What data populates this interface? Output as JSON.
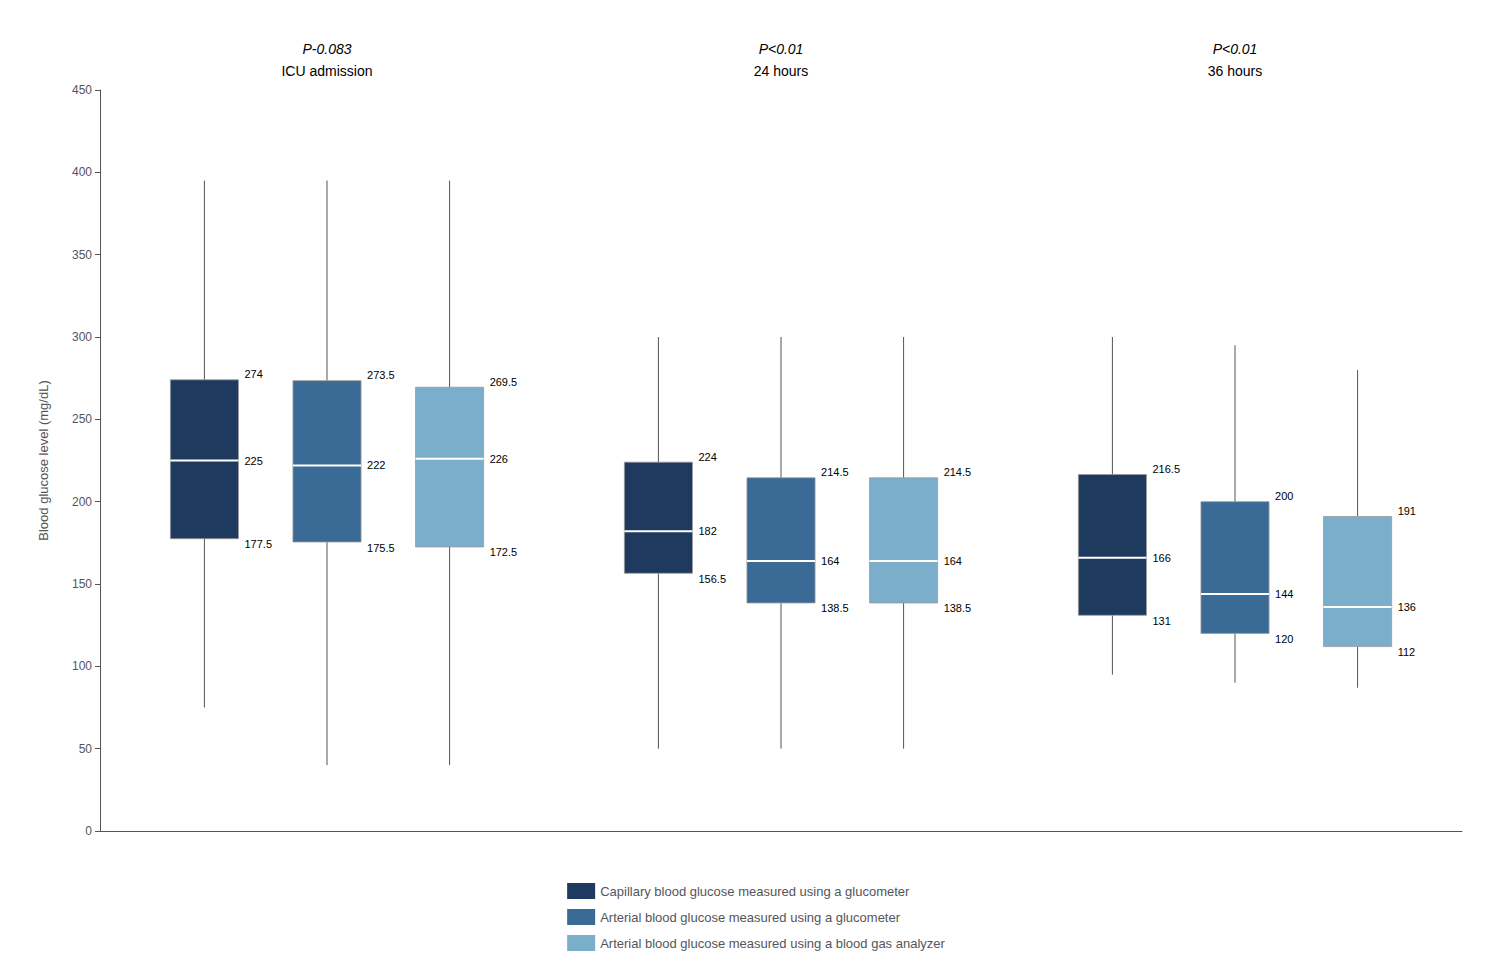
{
  "chart_data": {
    "type": "boxplot",
    "categories": [
      "ICU admission",
      "24 hours",
      "36 hours"
    ],
    "annotations": [
      "P-0.083",
      "P<0.01",
      "P<0.01"
    ],
    "ylabel": "Blood glucose level (mg/dL)",
    "ylim": [
      0,
      450
    ],
    "yticks": [
      0,
      50,
      100,
      150,
      200,
      250,
      300,
      350,
      400,
      450
    ],
    "grid": false,
    "legend": "bottom",
    "data_labels": true,
    "series": [
      {
        "name": "Capillary blood glucose measured using a glucometer",
        "color": "#1e3a5f",
        "values": [
          [
            75,
            177.5,
            225,
            274,
            395
          ],
          [
            50,
            156.5,
            182,
            224,
            300
          ],
          [
            95,
            131,
            166,
            216.5,
            300
          ]
        ]
      },
      {
        "name": "Arterial blood glucose measured using a glucometer",
        "color": "#3a6b96",
        "values": [
          [
            40,
            175.5,
            222,
            273.5,
            395
          ],
          [
            50,
            138.5,
            164,
            214.5,
            300
          ],
          [
            90,
            120,
            144,
            200,
            295
          ]
        ]
      },
      {
        "name": "Arterial blood glucose measured using a blood gas analyzer",
        "color": "#7aaecb",
        "values": [
          [
            40,
            172.5,
            226,
            269.5,
            395
          ],
          [
            50,
            138.5,
            164,
            214.5,
            300
          ],
          [
            87,
            112,
            136,
            191,
            280
          ]
        ]
      }
    ]
  }
}
